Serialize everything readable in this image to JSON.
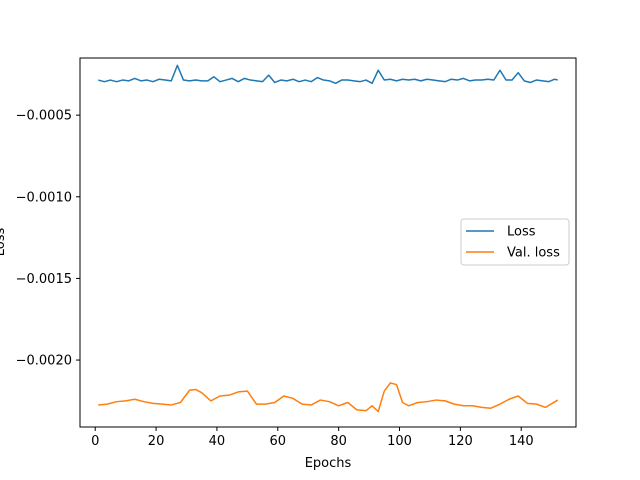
{
  "chart_data": {
    "type": "line",
    "title": "",
    "xlabel": "Epochs",
    "ylabel": "Loss",
    "xlim": [
      -5,
      158
    ],
    "ylim": [
      -0.00241,
      -0.00015
    ],
    "xticks": [
      0,
      20,
      40,
      60,
      80,
      100,
      120,
      140
    ],
    "xtick_labels": [
      "0",
      "20",
      "40",
      "60",
      "80",
      "100",
      "120",
      "140"
    ],
    "yticks": [
      -0.0005,
      -0.001,
      -0.0015,
      -0.002
    ],
    "ytick_labels": [
      "−0.0005",
      "−0.0010",
      "−0.0015",
      "−0.0020"
    ],
    "grid": false,
    "legend_position": "center-right",
    "series": [
      {
        "name": "Loss",
        "color": "#1f77b4",
        "x": [
          1,
          3,
          5,
          7,
          9,
          11,
          13,
          15,
          17,
          19,
          21,
          23,
          25,
          27,
          29,
          31,
          33,
          35,
          37,
          39,
          41,
          43,
          45,
          47,
          49,
          51,
          53,
          55,
          57,
          59,
          61,
          63,
          65,
          67,
          69,
          71,
          73,
          75,
          77,
          79,
          81,
          83,
          85,
          87,
          89,
          91,
          93,
          95,
          97,
          99,
          101,
          103,
          105,
          107,
          109,
          111,
          113,
          115,
          117,
          119,
          121,
          123,
          125,
          127,
          129,
          131,
          133,
          135,
          137,
          139,
          141,
          143,
          145,
          147,
          149,
          151,
          152
        ],
        "y": [
          -0.000285,
          -0.000295,
          -0.000285,
          -0.000295,
          -0.000285,
          -0.00029,
          -0.000275,
          -0.00029,
          -0.000285,
          -0.000295,
          -0.00028,
          -0.000285,
          -0.00029,
          -0.000195,
          -0.000285,
          -0.00029,
          -0.000285,
          -0.00029,
          -0.00029,
          -0.000265,
          -0.000295,
          -0.000285,
          -0.000275,
          -0.000295,
          -0.000275,
          -0.000285,
          -0.00029,
          -0.000295,
          -0.000255,
          -0.0003,
          -0.000285,
          -0.00029,
          -0.00028,
          -0.000295,
          -0.000285,
          -0.000295,
          -0.00027,
          -0.000285,
          -0.00029,
          -0.000305,
          -0.000285,
          -0.000285,
          -0.00029,
          -0.000295,
          -0.000285,
          -0.000305,
          -0.000225,
          -0.000285,
          -0.00028,
          -0.00029,
          -0.00028,
          -0.000285,
          -0.00028,
          -0.00029,
          -0.00028,
          -0.000285,
          -0.00029,
          -0.000295,
          -0.00028,
          -0.000285,
          -0.000275,
          -0.00029,
          -0.000285,
          -0.000285,
          -0.00028,
          -0.000285,
          -0.000225,
          -0.000285,
          -0.000285,
          -0.00024,
          -0.00029,
          -0.0003,
          -0.000285,
          -0.00029,
          -0.000295,
          -0.00028,
          -0.000285
        ]
      },
      {
        "name": "Val. loss",
        "color": "#ff7f0e",
        "x": [
          1,
          4,
          7,
          10,
          13,
          16,
          19,
          22,
          25,
          28,
          31,
          33,
          35,
          38,
          41,
          44,
          47,
          50,
          53,
          56,
          59,
          62,
          65,
          68,
          71,
          74,
          77,
          80,
          83,
          86,
          89,
          91,
          93,
          95,
          97,
          99,
          101,
          103,
          106,
          109,
          112,
          115,
          118,
          121,
          124,
          127,
          130,
          133,
          136,
          139,
          142,
          145,
          148,
          152
        ],
        "y": [
          -0.002275,
          -0.00227,
          -0.002255,
          -0.00225,
          -0.00224,
          -0.002255,
          -0.002265,
          -0.00227,
          -0.002275,
          -0.00226,
          -0.002185,
          -0.00218,
          -0.0022,
          -0.00225,
          -0.00222,
          -0.002215,
          -0.002195,
          -0.00219,
          -0.00227,
          -0.00227,
          -0.00226,
          -0.00222,
          -0.002235,
          -0.00227,
          -0.002275,
          -0.002245,
          -0.002255,
          -0.00228,
          -0.00226,
          -0.002305,
          -0.00231,
          -0.00228,
          -0.002315,
          -0.00219,
          -0.00214,
          -0.00215,
          -0.00226,
          -0.00228,
          -0.00226,
          -0.002255,
          -0.002245,
          -0.00225,
          -0.00227,
          -0.00228,
          -0.00228,
          -0.00229,
          -0.002295,
          -0.00227,
          -0.00224,
          -0.00222,
          -0.002265,
          -0.00227,
          -0.00229,
          -0.002245
        ]
      }
    ]
  }
}
